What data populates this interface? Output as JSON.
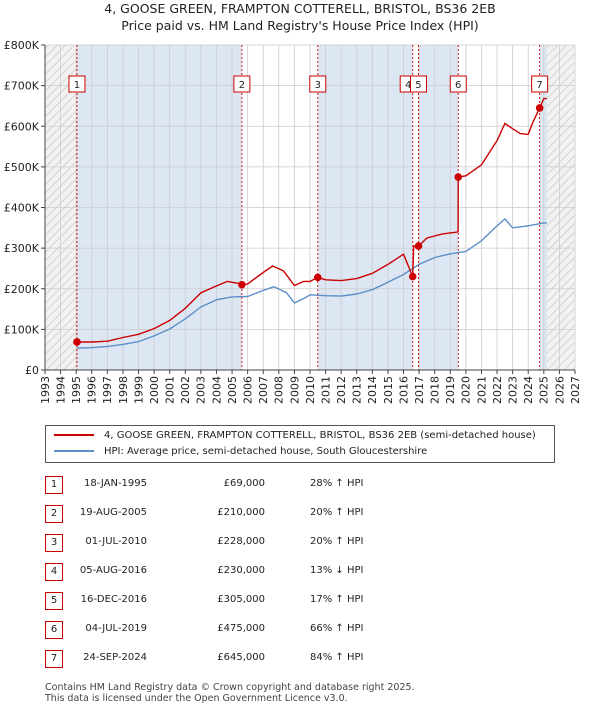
{
  "title_line1": "4, GOOSE GREEN, FRAMPTON COTTERELL, BRISTOL, BS36 2EB",
  "title_line2": "Price paid vs. HM Land Registry's House Price Index (HPI)",
  "colors": {
    "red": "#cc0000",
    "blue": "#5b8fc8",
    "shade": "#dde6f3",
    "grid": "#cccccc"
  },
  "chart_data": {
    "type": "line",
    "xlim": [
      1993,
      2027
    ],
    "ylim": [
      0,
      800000
    ],
    "yticks": [
      0,
      100000,
      200000,
      300000,
      400000,
      500000,
      600000,
      700000,
      800000
    ],
    "ytick_labels": [
      "£0",
      "£100K",
      "£200K",
      "£300K",
      "£400K",
      "£500K",
      "£600K",
      "£700K",
      "£800K"
    ],
    "xticks": [
      1993,
      1994,
      1995,
      1996,
      1997,
      1998,
      1999,
      2000,
      2001,
      2002,
      2003,
      2004,
      2005,
      2006,
      2007,
      2008,
      2009,
      2010,
      2011,
      2012,
      2013,
      2014,
      2015,
      2016,
      2017,
      2018,
      2019,
      2020,
      2021,
      2022,
      2023,
      2024,
      2025,
      2026,
      2027
    ],
    "shaded_regions": [
      [
        1995.05,
        2005.63
      ],
      [
        2010.5,
        2016.59
      ],
      [
        2016.96,
        2019.51
      ],
      [
        2024.73,
        2025.2
      ]
    ],
    "hatch_before": 1995.05,
    "hatch_after": 2025.2,
    "series": [
      {
        "name": "4, GOOSE GREEN, FRAMPTON COTTERELL, BRISTOL, BS36 2EB (semi-detached house)",
        "color": "#cc0000",
        "points": [
          [
            1995.05,
            69000
          ],
          [
            1996,
            69000
          ],
          [
            1997,
            71000
          ],
          [
            1998,
            80000
          ],
          [
            1999,
            88000
          ],
          [
            2000,
            102000
          ],
          [
            2001,
            122000
          ],
          [
            2002,
            152000
          ],
          [
            2003,
            190000
          ],
          [
            2004,
            207000
          ],
          [
            2004.7,
            218000
          ],
          [
            2005.6,
            212000
          ],
          [
            2005.63,
            210000
          ],
          [
            2006,
            212000
          ],
          [
            2007,
            240000
          ],
          [
            2007.6,
            256000
          ],
          [
            2008.3,
            244000
          ],
          [
            2009,
            208000
          ],
          [
            2009.6,
            218000
          ],
          [
            2010,
            218000
          ],
          [
            2010.5,
            228000
          ],
          [
            2011,
            222000
          ],
          [
            2012,
            220000
          ],
          [
            2013,
            225000
          ],
          [
            2014,
            238000
          ],
          [
            2015,
            260000
          ],
          [
            2016,
            285000
          ],
          [
            2016.59,
            230000
          ],
          [
            2016.65,
            305000
          ],
          [
            2016.96,
            305000
          ],
          [
            2017.5,
            325000
          ],
          [
            2018.5,
            335000
          ],
          [
            2019.5,
            340000
          ],
          [
            2019.51,
            475000
          ],
          [
            2020,
            478000
          ],
          [
            2021,
            505000
          ],
          [
            2022,
            565000
          ],
          [
            2022.5,
            607000
          ],
          [
            2023,
            594000
          ],
          [
            2023.5,
            582000
          ],
          [
            2024,
            580000
          ],
          [
            2024.3,
            610000
          ],
          [
            2024.73,
            645000
          ],
          [
            2025,
            668000
          ],
          [
            2025.2,
            668000
          ]
        ]
      },
      {
        "name": "HPI: Average price, semi-detached house, South Gloucestershire",
        "color": "#5b8fc8",
        "points": [
          [
            1995.05,
            54000
          ],
          [
            1996,
            55000
          ],
          [
            1997,
            58000
          ],
          [
            1998,
            63000
          ],
          [
            1999,
            70000
          ],
          [
            2000,
            84000
          ],
          [
            2001,
            101000
          ],
          [
            2002,
            126000
          ],
          [
            2003,
            155000
          ],
          [
            2004,
            173000
          ],
          [
            2005,
            180000
          ],
          [
            2006,
            181000
          ],
          [
            2007,
            196000
          ],
          [
            2007.7,
            205000
          ],
          [
            2008.5,
            190000
          ],
          [
            2009,
            165000
          ],
          [
            2009.7,
            178000
          ],
          [
            2010,
            185000
          ],
          [
            2011,
            183000
          ],
          [
            2012,
            182000
          ],
          [
            2013,
            187000
          ],
          [
            2014,
            198000
          ],
          [
            2015,
            216000
          ],
          [
            2016,
            235000
          ],
          [
            2017,
            260000
          ],
          [
            2018,
            277000
          ],
          [
            2019,
            286000
          ],
          [
            2020,
            292000
          ],
          [
            2021,
            318000
          ],
          [
            2022,
            355000
          ],
          [
            2022.5,
            372000
          ],
          [
            2023,
            350000
          ],
          [
            2024,
            355000
          ],
          [
            2025,
            362000
          ],
          [
            2025.2,
            362000
          ]
        ]
      }
    ],
    "sale_markers": [
      {
        "label": "1",
        "x": 1995.05,
        "y": 69000
      },
      {
        "label": "2",
        "x": 2005.63,
        "y": 210000
      },
      {
        "label": "3",
        "x": 2010.5,
        "y": 228000
      },
      {
        "label": "4",
        "x": 2016.59,
        "y": 230000
      },
      {
        "label": "5",
        "x": 2016.96,
        "y": 305000
      },
      {
        "label": "6",
        "x": 2019.51,
        "y": 475000
      },
      {
        "label": "7",
        "x": 2024.73,
        "y": 645000
      }
    ],
    "marker_boxes": [
      {
        "label": "1",
        "x": 1995.05
      },
      {
        "label": "2",
        "x": 2005.63
      },
      {
        "label": "3",
        "x": 2010.5
      },
      {
        "label": "4",
        "x": 2016.3
      },
      {
        "label": "5",
        "x": 2016.96
      },
      {
        "label": "6",
        "x": 2019.51
      },
      {
        "label": "7",
        "x": 2024.73
      }
    ]
  },
  "legend": [
    {
      "label": "4, GOOSE GREEN, FRAMPTON COTTERELL, BRISTOL, BS36 2EB (semi-detached house)",
      "color": "#cc0000"
    },
    {
      "label": "HPI: Average price, semi-detached house, South Gloucestershire",
      "color": "#5b8fc8"
    }
  ],
  "sales_table": [
    {
      "num": "1",
      "date": "18-JAN-1995",
      "price": "£69,000",
      "hpi": "28% ↑ HPI"
    },
    {
      "num": "2",
      "date": "19-AUG-2005",
      "price": "£210,000",
      "hpi": "20% ↑ HPI"
    },
    {
      "num": "3",
      "date": "01-JUL-2010",
      "price": "£228,000",
      "hpi": "20% ↑ HPI"
    },
    {
      "num": "4",
      "date": "05-AUG-2016",
      "price": "£230,000",
      "hpi": "13% ↓ HPI"
    },
    {
      "num": "5",
      "date": "16-DEC-2016",
      "price": "£305,000",
      "hpi": "17% ↑ HPI"
    },
    {
      "num": "6",
      "date": "04-JUL-2019",
      "price": "£475,000",
      "hpi": "66% ↑ HPI"
    },
    {
      "num": "7",
      "date": "24-SEP-2024",
      "price": "£645,000",
      "hpi": "84% ↑ HPI"
    }
  ],
  "footer_line1": "Contains HM Land Registry data © Crown copyright and database right 2025.",
  "footer_line2": "This data is licensed under the Open Government Licence v3.0."
}
